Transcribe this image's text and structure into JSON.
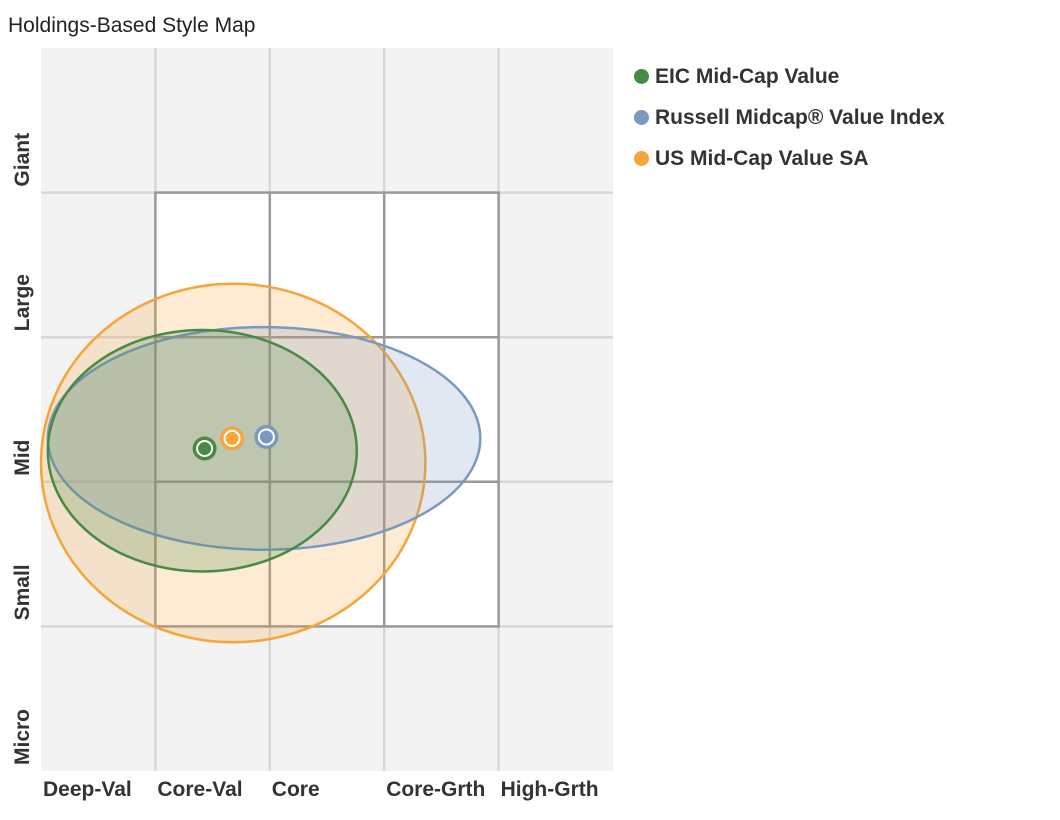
{
  "title": "Holdings-Based Style Map",
  "colors": {
    "background": "#f3f3f3",
    "grid": "#d7d7d7",
    "box_fill": "#ffffff",
    "box_border": "#999999"
  },
  "chart_data": {
    "type": "scatter",
    "title": "Holdings-Based Style Map",
    "x_categories": [
      "Deep-Val",
      "Core-Val",
      "Core",
      "Core-Grth",
      "High-Grth"
    ],
    "y_categories": [
      "Giant",
      "Large",
      "Mid",
      "Small",
      "Micro"
    ],
    "xlim": [
      0,
      5
    ],
    "ylim": [
      0,
      5
    ],
    "grid": true,
    "legend_position": "right",
    "style_box": {
      "x": [
        1,
        4
      ],
      "y": [
        1,
        4
      ]
    },
    "series": [
      {
        "name": "US Mid-Cap Value SA",
        "color": "#f5a53a",
        "x": 1.67,
        "y": 2.3,
        "ellipse": {
          "x": [
            0,
            3.36
          ],
          "y": [
            0.89,
            3.37
          ]
        }
      },
      {
        "name": "Russell Midcap® Value Index",
        "color": "#7b98bf",
        "x": 1.97,
        "y": 2.31,
        "ellipse": {
          "x": [
            0.06,
            3.84
          ],
          "y": [
            1.53,
            3.07
          ]
        }
      },
      {
        "name": "EIC Mid-Cap Value",
        "color": "#488a43",
        "x": 1.43,
        "y": 2.23,
        "ellipse": {
          "x": [
            0.06,
            2.76
          ],
          "y": [
            1.38,
            3.05
          ]
        }
      }
    ]
  },
  "legend": [
    {
      "label": "EIC Mid-Cap Value",
      "color": "#488a43"
    },
    {
      "label": "Russell Midcap® Value Index",
      "color": "#7b98bf"
    },
    {
      "label": "US Mid-Cap Value SA",
      "color": "#f5a53a"
    }
  ]
}
